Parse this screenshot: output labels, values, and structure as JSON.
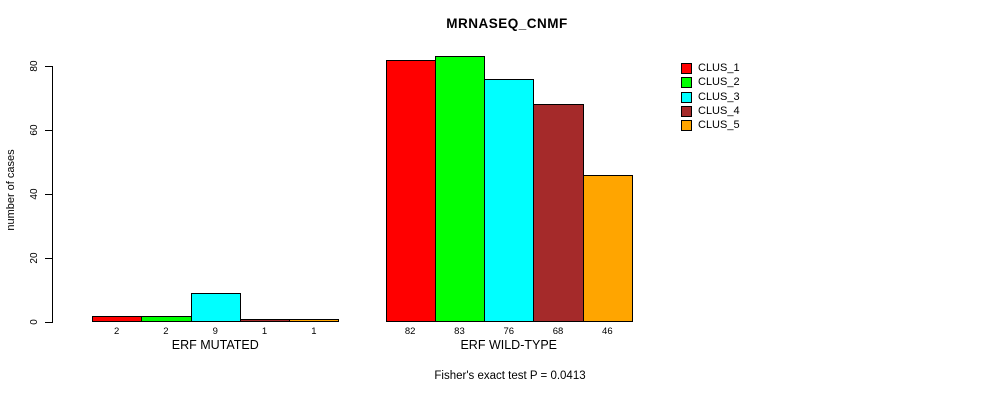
{
  "figure": {
    "title": "MRNASEQ_CNMF",
    "y_axis_label": "number of cases",
    "footer_annotation": "Fisher's exact test P = 0.0413"
  },
  "chart_data": {
    "type": "bar",
    "title": "MRNASEQ_CNMF",
    "xlabel": "",
    "ylabel": "number of cases",
    "ylim": [
      0,
      80
    ],
    "yticks": [
      0,
      20,
      40,
      60,
      80
    ],
    "grid": false,
    "legend_position": "right",
    "bar_value_labels": true,
    "categories": [
      "ERF MUTATED",
      "ERF WILD-TYPE"
    ],
    "series": [
      {
        "name": "CLUS_1",
        "color": "#ff0000",
        "values": [
          2,
          82
        ]
      },
      {
        "name": "CLUS_2",
        "color": "#00ff00",
        "values": [
          2,
          83
        ]
      },
      {
        "name": "CLUS_3",
        "color": "#00ffff",
        "values": [
          9,
          76
        ]
      },
      {
        "name": "CLUS_4",
        "color": "#a52a2a",
        "values": [
          1,
          68
        ]
      },
      {
        "name": "CLUS_5",
        "color": "#ffa500",
        "values": [
          1,
          46
        ]
      }
    ],
    "annotation": "Fisher's exact test P = 0.0413"
  }
}
